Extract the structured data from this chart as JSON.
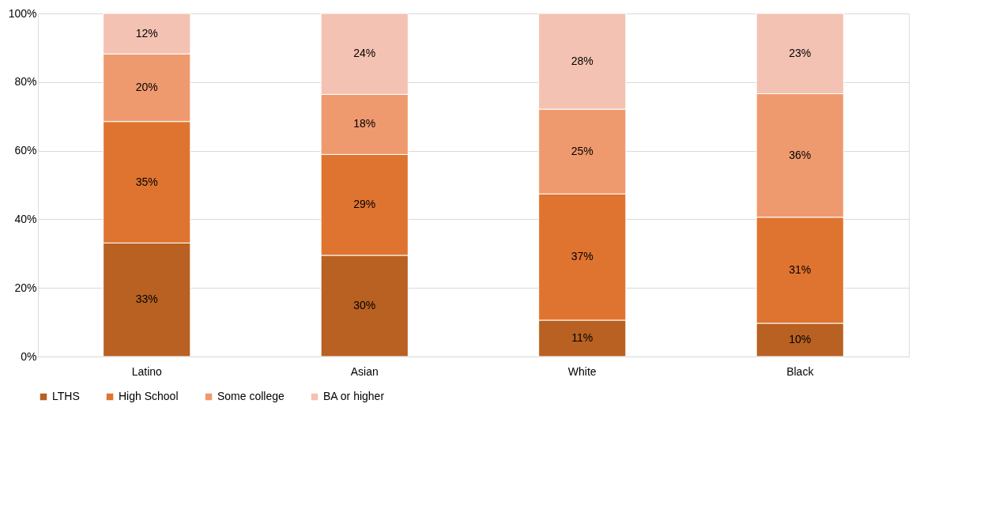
{
  "chart_data": {
    "type": "bar",
    "stacked": true,
    "categories": [
      "Latino",
      "Asian",
      "White",
      "Black"
    ],
    "series": [
      {
        "name": "LTHS",
        "color": "#b86122",
        "values": [
          33.1,
          29.5,
          10.6,
          9.7
        ],
        "value_labels": [
          "33%",
          "30%",
          "11%",
          "10%"
        ]
      },
      {
        "name": "High School",
        "color": "#df7430",
        "values": [
          35.4,
          29.4,
          36.8,
          30.9
        ],
        "value_labels": [
          "35%",
          "29%",
          "37%",
          "31%"
        ]
      },
      {
        "name": "Some college",
        "color": "#ef9a6e",
        "values": [
          19.7,
          17.5,
          24.7,
          36.0
        ],
        "value_labels": [
          "20%",
          "18%",
          "25%",
          "36%"
        ]
      },
      {
        "name": "BA or higher",
        "color": "#f4c2b2",
        "values": [
          11.8,
          23.6,
          27.9,
          23.4
        ],
        "value_labels": [
          "12%",
          "24%",
          "28%",
          "23%"
        ]
      }
    ],
    "ylim": [
      0,
      100
    ],
    "yticks": [
      {
        "value": 0,
        "label": "0%"
      },
      {
        "value": 20,
        "label": "20%"
      },
      {
        "value": 40,
        "label": "40%"
      },
      {
        "value": 60,
        "label": "60%"
      },
      {
        "value": 80,
        "label": "80%"
      },
      {
        "value": 100,
        "label": "100%"
      }
    ],
    "grid": "y",
    "legend": "bottom"
  }
}
